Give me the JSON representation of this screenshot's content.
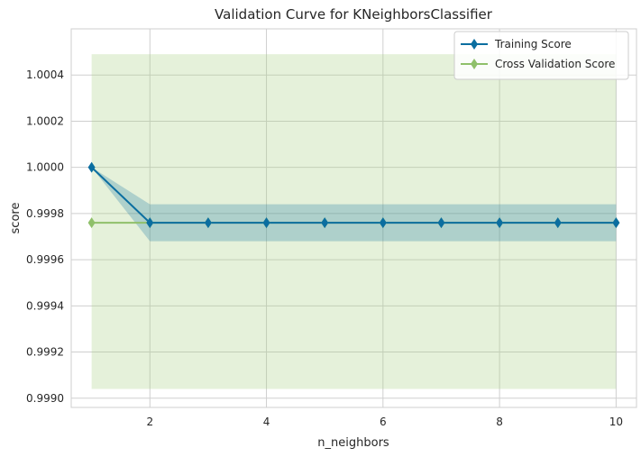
{
  "chart_data": {
    "type": "line",
    "title": "Validation Curve for KNeighborsClassifier",
    "xlabel": "n_neighbors",
    "ylabel": "score",
    "xlim": [
      0.65,
      10.35
    ],
    "ylim": [
      0.99896,
      1.0006
    ],
    "xticks": [
      2,
      4,
      6,
      8,
      10
    ],
    "yticks": [
      0.999,
      0.9992,
      0.9994,
      0.9996,
      0.9998,
      1.0,
      1.0002,
      1.0004
    ],
    "ytick_labels": [
      "0.9990",
      "0.9992",
      "0.9994",
      "0.9996",
      "0.9998",
      "1.0000",
      "1.0002",
      "1.0004"
    ],
    "grid": true,
    "legend_position": "top-right",
    "x": [
      1,
      2,
      3,
      4,
      5,
      6,
      7,
      8,
      9,
      10
    ],
    "series": [
      {
        "name": "Training Score",
        "color": "#0b6ea0",
        "marker": "diamond",
        "values": [
          1.0,
          0.99976,
          0.99976,
          0.99976,
          0.99976,
          0.99976,
          0.99976,
          0.99976,
          0.99976,
          0.99976
        ],
        "band_low": [
          1.0,
          0.99968,
          0.99968,
          0.99968,
          0.99968,
          0.99968,
          0.99968,
          0.99968,
          0.99968,
          0.99968
        ],
        "band_high": [
          1.0,
          0.99984,
          0.99984,
          0.99984,
          0.99984,
          0.99984,
          0.99984,
          0.99984,
          0.99984,
          0.99984
        ],
        "band_color": "#0b6ea0"
      },
      {
        "name": "Cross Validation Score",
        "color": "#8fc06a",
        "marker": "diamond",
        "values": [
          0.99976,
          0.99976,
          0.99976,
          0.99976,
          0.99976,
          0.99976,
          0.99976,
          0.99976,
          0.99976,
          0.99976
        ],
        "band_low": [
          0.99904,
          0.99904,
          0.99904,
          0.99904,
          0.99904,
          0.99904,
          0.99904,
          0.99904,
          0.99904,
          0.99904
        ],
        "band_high": [
          1.00049,
          1.00049,
          1.00049,
          1.00049,
          1.00049,
          1.00049,
          1.00049,
          1.00049,
          1.00049,
          1.00049
        ],
        "band_color": "#a8cf85"
      }
    ]
  }
}
